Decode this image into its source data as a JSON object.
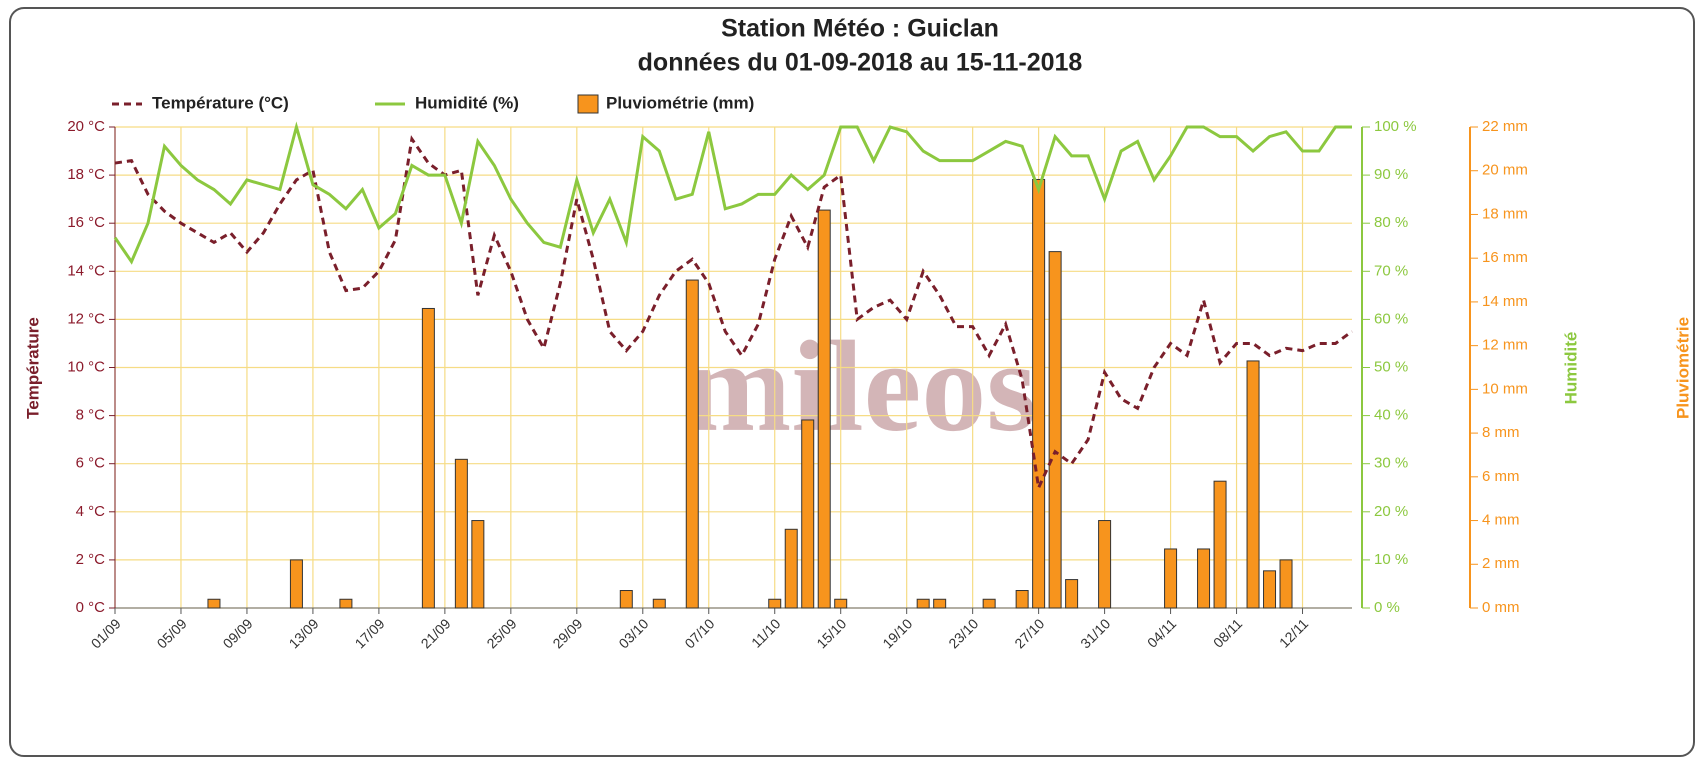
{
  "chart_data": {
    "type": "combo",
    "title": "Station Météo : Guiclan",
    "subtitle": "données du 01-09-2018 au 15-11-2018",
    "watermark": "mileos",
    "ylabel": "Température",
    "y2label": "Humidité",
    "y3label": "Pluviométrie",
    "categories": [
      "01/09",
      null,
      null,
      null,
      "05/09",
      null,
      null,
      null,
      "09/09",
      null,
      null,
      null,
      "13/09",
      null,
      null,
      null,
      "17/09",
      null,
      null,
      null,
      "21/09",
      null,
      null,
      null,
      "25/09",
      null,
      null,
      null,
      "29/09",
      null,
      null,
      null,
      "03/10",
      null,
      null,
      null,
      "07/10",
      null,
      null,
      null,
      "11/10",
      null,
      null,
      null,
      "15/10",
      null,
      null,
      null,
      "19/10",
      null,
      null,
      null,
      "23/10",
      null,
      null,
      null,
      "27/10",
      null,
      null,
      null,
      "31/10",
      null,
      null,
      null,
      "04/11",
      null,
      null,
      null,
      "08/11",
      null,
      null,
      null,
      "12/11",
      null,
      null,
      null
    ],
    "series": [
      {
        "name": "Température (°C)",
        "color": "#7a1f2b",
        "style": "dashed-line",
        "axis": "y",
        "values": [
          18.5,
          18.6,
          17.2,
          16.5,
          16.0,
          15.6,
          15.2,
          15.6,
          14.8,
          15.6,
          16.8,
          17.8,
          18.2,
          14.8,
          13.2,
          13.3,
          14.0,
          15.3,
          19.5,
          18.5,
          18.0,
          18.2,
          13.0,
          15.5,
          14.0,
          12.0,
          10.8,
          13.5,
          17.0,
          14.5,
          11.5,
          10.7,
          11.5,
          13.0,
          14.0,
          14.5,
          13.5,
          11.5,
          10.5,
          11.8,
          14.5,
          16.3,
          15.0,
          17.5,
          18.0,
          12.0,
          12.5,
          12.8,
          12.0,
          14.0,
          13.0,
          11.7,
          11.7,
          10.5,
          11.8,
          9.5,
          5.0,
          6.5,
          6.0,
          7.0,
          9.8,
          8.7,
          8.3,
          10.0,
          11.0,
          10.5,
          12.8,
          10.2,
          11.0,
          11.0,
          10.5,
          10.8,
          10.7,
          11.0,
          11.0,
          11.5
        ]
      },
      {
        "name": "Humidité (%)",
        "color": "#8cc83f",
        "style": "line",
        "axis": "y2",
        "values": [
          77,
          72,
          80,
          96,
          92,
          89,
          87,
          84,
          89,
          88,
          87,
          100,
          88,
          86,
          83,
          87,
          79,
          82,
          92,
          90,
          90,
          80,
          97,
          92,
          85,
          80,
          76,
          75,
          89,
          78,
          85,
          76,
          98,
          95,
          85,
          86,
          99,
          83,
          84,
          86,
          86,
          90,
          87,
          90,
          100,
          100,
          93,
          100,
          99,
          95,
          93,
          93,
          93,
          95,
          97,
          96,
          87,
          98,
          94,
          94,
          85,
          95,
          97,
          89,
          94,
          100,
          100,
          98,
          98,
          95,
          98,
          99,
          95,
          95,
          100,
          100
        ]
      },
      {
        "name": "Pluviométrie (mm)",
        "color": "#f7941d",
        "style": "bar",
        "axis": "y3",
        "values": [
          0,
          0,
          0,
          0,
          0,
          0,
          0.4,
          0,
          0,
          0,
          0,
          2.2,
          0,
          0,
          0.4,
          0,
          0,
          0,
          0,
          13.7,
          0,
          6.8,
          4.0,
          0,
          0,
          0,
          0,
          0,
          0,
          0,
          0,
          0.8,
          0,
          0.4,
          0,
          15.0,
          0,
          0,
          0,
          0,
          0.4,
          3.6,
          8.6,
          18.2,
          0.4,
          0,
          0,
          0,
          0,
          0.4,
          0.4,
          0,
          0,
          0.4,
          0,
          0.8,
          19.6,
          16.3,
          1.3,
          0,
          4.0,
          0,
          0,
          0,
          2.7,
          0,
          2.7,
          5.8,
          0,
          11.3,
          1.7,
          2.2,
          0,
          0,
          0,
          0
        ]
      }
    ],
    "ylim": [
      0,
      20
    ],
    "yticks": [
      {
        "value": 0,
        "label": "0 °C"
      },
      {
        "value": 2,
        "label": "2 °C"
      },
      {
        "value": 4,
        "label": "4 °C"
      },
      {
        "value": 6,
        "label": "6 °C"
      },
      {
        "value": 8,
        "label": "8 °C"
      },
      {
        "value": 10,
        "label": "10 °C"
      },
      {
        "value": 12,
        "label": "12 °C"
      },
      {
        "value": 14,
        "label": "14 °C"
      },
      {
        "value": 16,
        "label": "16 °C"
      },
      {
        "value": 18,
        "label": "18 °C"
      },
      {
        "value": 20,
        "label": "20 °C"
      }
    ],
    "y2lim": [
      0,
      100
    ],
    "y2ticks": [
      {
        "value": 0,
        "label": "0 %"
      },
      {
        "value": 10,
        "label": "10 %"
      },
      {
        "value": 20,
        "label": "20 %"
      },
      {
        "value": 30,
        "label": "30 %"
      },
      {
        "value": 40,
        "label": "40 %"
      },
      {
        "value": 50,
        "label": "50 %"
      },
      {
        "value": 60,
        "label": "60 %"
      },
      {
        "value": 70,
        "label": "70 %"
      },
      {
        "value": 80,
        "label": "80 %"
      },
      {
        "value": 90,
        "label": "90 %"
      },
      {
        "value": 100,
        "label": "100 %"
      }
    ],
    "y3lim": [
      0,
      22
    ],
    "y3ticks": [
      {
        "value": 0,
        "label": "0 mm"
      },
      {
        "value": 2,
        "label": "2 mm"
      },
      {
        "value": 4,
        "label": "4 mm"
      },
      {
        "value": 6,
        "label": "6 mm"
      },
      {
        "value": 8,
        "label": "8 mm"
      },
      {
        "value": 10,
        "label": "10 mm"
      },
      {
        "value": 12,
        "label": "12 mm"
      },
      {
        "value": 14,
        "label": "14 mm"
      },
      {
        "value": 16,
        "label": "16 mm"
      },
      {
        "value": 18,
        "label": "18 mm"
      },
      {
        "value": 20,
        "label": "20 mm"
      },
      {
        "value": 22,
        "label": "22 mm"
      }
    ],
    "grid": true,
    "legend": "top-left"
  }
}
